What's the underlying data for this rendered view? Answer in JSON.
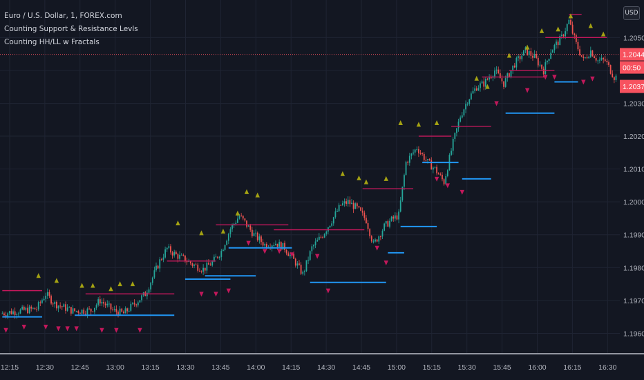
{
  "legend": {
    "symbol": "Euro / U.S. Dollar, 1, FOREX.com",
    "indicator1": "Counting Support & Resistance Levls",
    "indicator2": "Counting HH/LL w Fractals"
  },
  "currency_button": "USD",
  "price_tags": {
    "last": "1.20449",
    "countdown": "00:50",
    "bid": "1.20377",
    "colors": {
      "last": "#f7525f",
      "bid": "#f7525f"
    }
  },
  "colors": {
    "background": "#131722",
    "up": "#26a69a",
    "down": "#ef5350",
    "resistance": "#c2185b",
    "support": "#2196f3",
    "fractal_high": "#a4a213",
    "fractal_low": "#c2185b"
  },
  "chart_data": {
    "type": "candlestick",
    "x_ticks": [
      "12:15",
      "12:30",
      "12:45",
      "13:00",
      "13:15",
      "13:30",
      "13:45",
      "14:00",
      "14:15",
      "14:30",
      "14:45",
      "15:00",
      "15:15",
      "15:30",
      "15:45",
      "16:00",
      "16:15",
      "16:30"
    ],
    "y_ticks": [
      "1.20500",
      "1.20400",
      "1.20300",
      "1.20200",
      "1.20100",
      "1.20000",
      "1.19900",
      "1.19800",
      "1.19700",
      "1.19600"
    ],
    "ylim": [
      1.1954,
      1.2061
    ],
    "last_price": 1.20449,
    "path_keypoints": [
      [
        0,
        1.1966
      ],
      [
        10,
        1.19668
      ],
      [
        20,
        1.19675
      ],
      [
        25,
        1.1972
      ],
      [
        30,
        1.1969
      ],
      [
        40,
        1.19668
      ],
      [
        50,
        1.1967
      ],
      [
        55,
        1.197
      ],
      [
        62,
        1.1967
      ],
      [
        68,
        1.1966
      ],
      [
        72,
        1.1968
      ],
      [
        80,
        1.1972
      ],
      [
        88,
        1.1982
      ],
      [
        92,
        1.19858
      ],
      [
        97,
        1.19838
      ],
      [
        102,
        1.19825
      ],
      [
        106,
        1.1981
      ],
      [
        112,
        1.19795
      ],
      [
        117,
        1.19815
      ],
      [
        122,
        1.1985
      ],
      [
        127,
        1.19918
      ],
      [
        132,
        1.19958
      ],
      [
        136,
        1.1993
      ],
      [
        140,
        1.199
      ],
      [
        146,
        1.1987
      ],
      [
        152,
        1.19875
      ],
      [
        157,
        1.1986
      ],
      [
        163,
        1.19815
      ],
      [
        167,
        1.1978
      ],
      [
        172,
        1.1986
      ],
      [
        178,
        1.199
      ],
      [
        182,
        1.19935
      ],
      [
        188,
        1.1999
      ],
      [
        192,
        1.2
      ],
      [
        197,
        1.1998
      ],
      [
        202,
        1.19945
      ],
      [
        206,
        1.1987
      ],
      [
        212,
        1.19925
      ],
      [
        216,
        1.19945
      ],
      [
        220,
        1.1996
      ],
      [
        224,
        1.2012
      ],
      [
        230,
        1.20165
      ],
      [
        236,
        1.2012
      ],
      [
        240,
        1.201
      ],
      [
        245,
        1.2006
      ],
      [
        250,
        1.2018
      ],
      [
        254,
        1.2026
      ],
      [
        258,
        1.2031
      ],
      [
        263,
        1.2035
      ],
      [
        267,
        1.2036
      ],
      [
        273,
        1.204
      ],
      [
        278,
        1.2036
      ],
      [
        284,
        1.2042
      ],
      [
        290,
        1.2046
      ],
      [
        295,
        1.2044
      ],
      [
        300,
        1.204
      ],
      [
        304,
        1.2046
      ],
      [
        310,
        1.205
      ],
      [
        314,
        1.2055
      ],
      [
        318,
        1.2048
      ],
      [
        322,
        1.2043
      ],
      [
        326,
        1.2046
      ],
      [
        330,
        1.2043
      ],
      [
        334,
        1.2043
      ],
      [
        339,
        1.2038
      ]
    ],
    "resistance_levels": [
      [
        0,
        22,
        1.1973
      ],
      [
        46,
        95,
        1.1972
      ],
      [
        91,
        118,
        1.1982
      ],
      [
        118,
        158,
        1.1993
      ],
      [
        150,
        200,
        1.19915
      ],
      [
        199,
        227,
        1.2004
      ],
      [
        230,
        248,
        1.202
      ],
      [
        248,
        270,
        1.2023
      ],
      [
        265,
        300,
        1.2038
      ],
      [
        280,
        305,
        1.204
      ],
      [
        300,
        334,
        1.205
      ],
      [
        313,
        320,
        1.2057
      ]
    ],
    "support_levels": [
      [
        0,
        22,
        1.1965
      ],
      [
        40,
        95,
        1.19655
      ],
      [
        101,
        126,
        1.19765
      ],
      [
        112,
        140,
        1.19775
      ],
      [
        125,
        160,
        1.1986
      ],
      [
        170,
        212,
        1.19755
      ],
      [
        213,
        222,
        1.19845
      ],
      [
        220,
        240,
        1.19925
      ],
      [
        232,
        252,
        1.2012
      ],
      [
        254,
        270,
        1.2007
      ],
      [
        278,
        305,
        1.2027
      ],
      [
        305,
        318,
        1.20365
      ]
    ],
    "fractal_highs": [
      [
        20,
        1.19775
      ],
      [
        30,
        1.1976
      ],
      [
        44,
        1.19745
      ],
      [
        50,
        1.19745
      ],
      [
        60,
        1.19735
      ],
      [
        65,
        1.1975
      ],
      [
        72,
        1.1975
      ],
      [
        97,
        1.19935
      ],
      [
        110,
        1.19905
      ],
      [
        122,
        1.1991
      ],
      [
        130,
        1.19965
      ],
      [
        135,
        1.2003
      ],
      [
        141,
        1.2002
      ],
      [
        188,
        1.20085
      ],
      [
        197,
        1.20072
      ],
      [
        201,
        1.2006
      ],
      [
        212,
        1.2007
      ],
      [
        220,
        1.2024
      ],
      [
        230,
        1.20235
      ],
      [
        240,
        1.2024
      ],
      [
        262,
        1.20375
      ],
      [
        268,
        1.2035
      ],
      [
        280,
        1.20445
      ],
      [
        290,
        1.2047
      ],
      [
        298,
        1.2052
      ],
      [
        307,
        1.20525
      ],
      [
        314,
        1.20565
      ],
      [
        325,
        1.20535
      ],
      [
        332,
        1.2051
      ]
    ],
    "fractal_lows": [
      [
        2,
        1.1961
      ],
      [
        12,
        1.1962
      ],
      [
        24,
        1.1962
      ],
      [
        31,
        1.19615
      ],
      [
        36,
        1.19615
      ],
      [
        41,
        1.19615
      ],
      [
        55,
        1.1961
      ],
      [
        63,
        1.1961
      ],
      [
        76,
        1.1961
      ],
      [
        110,
        1.1972
      ],
      [
        118,
        1.1972
      ],
      [
        125,
        1.1973
      ],
      [
        136,
        1.19875
      ],
      [
        145,
        1.1985
      ],
      [
        153,
        1.1985
      ],
      [
        160,
        1.1984
      ],
      [
        174,
        1.19835
      ],
      [
        180,
        1.1973
      ],
      [
        207,
        1.1986
      ],
      [
        212,
        1.19815
      ],
      [
        240,
        1.2007
      ],
      [
        246,
        1.2005
      ],
      [
        254,
        1.2003
      ],
      [
        273,
        1.203
      ],
      [
        290,
        1.2034
      ],
      [
        300,
        1.2038
      ],
      [
        305,
        1.2038
      ],
      [
        321,
        1.20365
      ],
      [
        326,
        1.20375
      ]
    ]
  }
}
